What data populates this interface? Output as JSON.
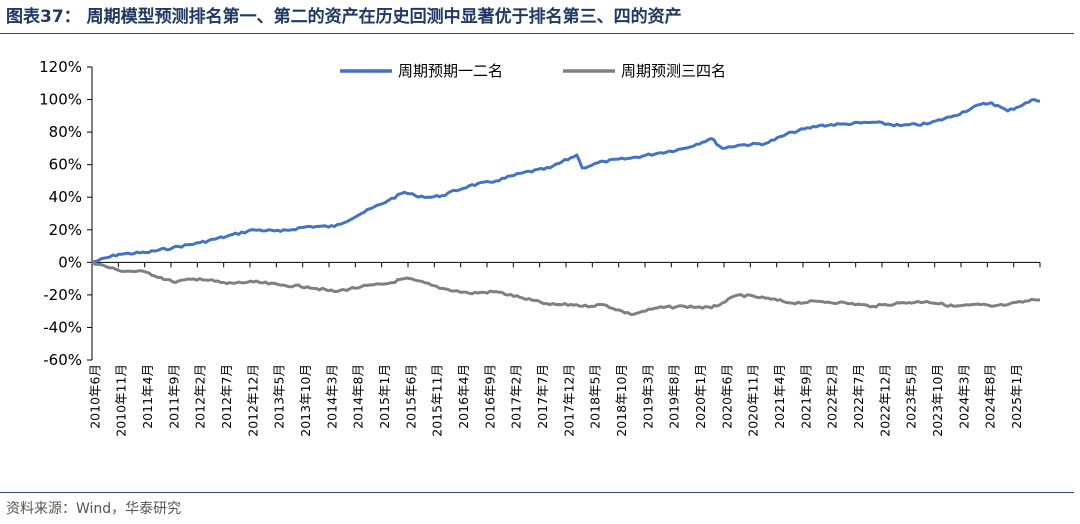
{
  "title": "图表37：  周期模型预测排名第一、第二的资产在历史回测中显著优于排名第三、四的资产",
  "source": "资料来源：Wind，华泰研究",
  "colors": {
    "series1": "#4472c4",
    "series2": "#808080",
    "accent": "#1f3864"
  },
  "chart_data": {
    "type": "line",
    "title": "",
    "xlabel": "",
    "ylabel": "",
    "ylim": [
      -60,
      120
    ],
    "y_unit": "%",
    "y_ticks": [
      -60,
      -40,
      -20,
      0,
      20,
      40,
      60,
      80,
      100,
      120
    ],
    "y_tick_labels": [
      "-60%",
      "-40%",
      "-20%",
      "0%",
      "20%",
      "40%",
      "60%",
      "80%",
      "100%",
      "120%"
    ],
    "x_tick_labels": [
      "2010年6月",
      "2010年11月",
      "2011年4月",
      "2011年9月",
      "2012年2月",
      "2012年7月",
      "2012年12月",
      "2013年5月",
      "2013年10月",
      "2014年3月",
      "2014年8月",
      "2015年1月",
      "2015年6月",
      "2015年11月",
      "2016年4月",
      "2016年9月",
      "2017年2月",
      "2017年7月",
      "2017年12月",
      "2018年5月",
      "2018年10月",
      "2019年3月",
      "2019年8月",
      "2020年1月",
      "2020年6月",
      "2020年11月",
      "2021年4月",
      "2021年9月",
      "2022年2月",
      "2022年7月",
      "2022年12月",
      "2023年5月",
      "2023年10月",
      "2024年3月",
      "2024年8月",
      "2025年1月"
    ],
    "legend_position": "top-center",
    "grid": false,
    "x": [
      "2010-06",
      "2010-11",
      "2011-04",
      "2011-09",
      "2012-02",
      "2012-07",
      "2012-12",
      "2013-05",
      "2013-10",
      "2014-03",
      "2014-08",
      "2015-01",
      "2015-04",
      "2015-06",
      "2015-09",
      "2015-11",
      "2016-04",
      "2016-09",
      "2017-02",
      "2017-07",
      "2017-12",
      "2018-01",
      "2018-05",
      "2018-10",
      "2019-03",
      "2019-08",
      "2020-01",
      "2020-03",
      "2020-06",
      "2020-11",
      "2021-04",
      "2021-09",
      "2022-02",
      "2022-07",
      "2022-12",
      "2023-05",
      "2023-10",
      "2024-03",
      "2024-05",
      "2024-08",
      "2025-01",
      "2025-02"
    ],
    "series": [
      {
        "name": "周期预期一二名",
        "values": [
          0,
          5,
          6,
          9,
          12,
          16,
          20,
          19,
          22,
          22,
          30,
          38,
          43,
          41,
          40,
          41,
          47,
          50,
          55,
          58,
          66,
          58,
          62,
          64,
          67,
          70,
          76,
          70,
          72,
          73,
          80,
          84,
          85,
          86,
          84,
          85,
          90,
          97,
          98,
          93,
          100,
          99
        ]
      },
      {
        "name": "周期预测三四名",
        "values": [
          0,
          -5,
          -6,
          -12,
          -10,
          -13,
          -12,
          -14,
          -15,
          -18,
          -15,
          -13,
          -10,
          -11,
          -14,
          -16,
          -19,
          -18,
          -22,
          -26,
          -26,
          -27,
          -26,
          -32,
          -28,
          -27,
          -28,
          -25,
          -20,
          -22,
          -25,
          -24,
          -25,
          -27,
          -25,
          -24,
          -27,
          -26,
          -27,
          -26,
          -23,
          -23
        ]
      }
    ]
  }
}
